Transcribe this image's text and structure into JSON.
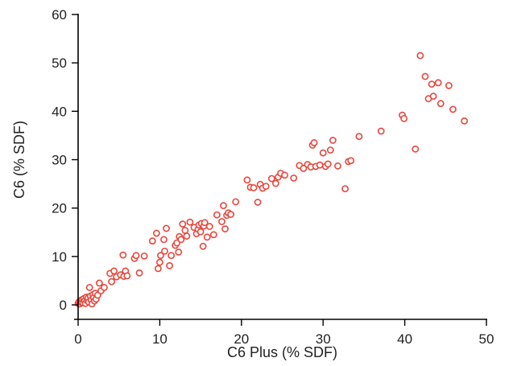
{
  "chart_data": {
    "type": "scatter",
    "title": "",
    "xlabel": "C6 Plus (% SDF)",
    "ylabel": "C6 (% SDF)",
    "xlim": [
      0,
      50
    ],
    "ylim": [
      0,
      60
    ],
    "xticks": [
      0,
      10,
      20,
      30,
      40,
      50
    ],
    "yticks": [
      0,
      10,
      20,
      30,
      40,
      50,
      60
    ],
    "grid": false,
    "legend": "none",
    "marker": "open-circle",
    "color": "#e8463c",
    "series": [
      {
        "points": [
          [
            0.0,
            0.3
          ],
          [
            0.1,
            0.6
          ],
          [
            0.2,
            0.2
          ],
          [
            0.3,
            0.9
          ],
          [
            0.4,
            0.5
          ],
          [
            0.5,
            1.1
          ],
          [
            0.6,
            0.4
          ],
          [
            0.7,
            1.3
          ],
          [
            0.8,
            0.8
          ],
          [
            0.9,
            0.3
          ],
          [
            1.0,
            1.6
          ],
          [
            1.1,
            0.9
          ],
          [
            1.2,
            1.4
          ],
          [
            1.3,
            0.6
          ],
          [
            1.4,
            3.6
          ],
          [
            1.5,
            1.8
          ],
          [
            1.6,
            1.0
          ],
          [
            1.7,
            0.2
          ],
          [
            1.8,
            2.1
          ],
          [
            1.9,
            1.5
          ],
          [
            2.0,
            0.8
          ],
          [
            2.1,
            2.4
          ],
          [
            2.2,
            1.2
          ],
          [
            2.4,
            2.0
          ],
          [
            2.6,
            4.5
          ],
          [
            2.8,
            2.9
          ],
          [
            3.2,
            3.6
          ],
          [
            3.9,
            6.5
          ],
          [
            4.1,
            4.8
          ],
          [
            4.4,
            7.0
          ],
          [
            4.7,
            5.8
          ],
          [
            5.2,
            6.2
          ],
          [
            5.5,
            10.3
          ],
          [
            5.6,
            5.9
          ],
          [
            5.8,
            7.0
          ],
          [
            6.0,
            6.0
          ],
          [
            6.9,
            9.6
          ],
          [
            7.1,
            10.2
          ],
          [
            7.5,
            6.6
          ],
          [
            8.1,
            10.1
          ],
          [
            9.1,
            13.2
          ],
          [
            9.6,
            14.8
          ],
          [
            9.8,
            7.5
          ],
          [
            10.0,
            8.8
          ],
          [
            10.1,
            10.2
          ],
          [
            10.5,
            13.5
          ],
          [
            10.6,
            11.1
          ],
          [
            10.8,
            15.8
          ],
          [
            11.2,
            8.1
          ],
          [
            11.4,
            10.2
          ],
          [
            11.9,
            12.3
          ],
          [
            12.1,
            12.8
          ],
          [
            12.3,
            10.9
          ],
          [
            12.4,
            14.1
          ],
          [
            12.6,
            13.5
          ],
          [
            12.8,
            16.7
          ],
          [
            13.1,
            15.4
          ],
          [
            13.3,
            14.2
          ],
          [
            13.7,
            17.1
          ],
          [
            14.2,
            16.0
          ],
          [
            14.5,
            14.7
          ],
          [
            14.7,
            15.6
          ],
          [
            14.8,
            16.5
          ],
          [
            15.0,
            15.1
          ],
          [
            15.1,
            16.8
          ],
          [
            15.3,
            12.1
          ],
          [
            15.4,
            16.3
          ],
          [
            15.5,
            17.0
          ],
          [
            15.8,
            14.0
          ],
          [
            16.1,
            16.2
          ],
          [
            16.6,
            14.5
          ],
          [
            17.0,
            18.6
          ],
          [
            17.6,
            17.2
          ],
          [
            17.8,
            20.5
          ],
          [
            18.0,
            15.7
          ],
          [
            18.2,
            18.5
          ],
          [
            18.4,
            19.0
          ],
          [
            18.7,
            18.7
          ],
          [
            19.3,
            21.3
          ],
          [
            20.7,
            25.8
          ],
          [
            21.1,
            24.3
          ],
          [
            21.5,
            24.2
          ],
          [
            22.0,
            21.2
          ],
          [
            22.3,
            24.9
          ],
          [
            22.6,
            24.1
          ],
          [
            23.0,
            24.5
          ],
          [
            23.7,
            26.1
          ],
          [
            24.2,
            25.1
          ],
          [
            24.5,
            26.4
          ],
          [
            24.8,
            27.2
          ],
          [
            25.3,
            26.8
          ],
          [
            26.4,
            26.2
          ],
          [
            27.1,
            28.8
          ],
          [
            27.6,
            28.2
          ],
          [
            28.1,
            29.0
          ],
          [
            28.5,
            28.5
          ],
          [
            28.7,
            33.0
          ],
          [
            28.9,
            33.5
          ],
          [
            29.1,
            28.6
          ],
          [
            29.6,
            28.9
          ],
          [
            30.0,
            31.4
          ],
          [
            30.3,
            28.6
          ],
          [
            30.6,
            29.1
          ],
          [
            30.9,
            32.0
          ],
          [
            31.2,
            34.0
          ],
          [
            31.8,
            28.7
          ],
          [
            32.7,
            24.0
          ],
          [
            33.1,
            29.6
          ],
          [
            33.4,
            29.8
          ],
          [
            34.4,
            34.8
          ],
          [
            37.1,
            35.9
          ],
          [
            39.7,
            39.2
          ],
          [
            39.9,
            38.5
          ],
          [
            41.3,
            32.2
          ],
          [
            41.9,
            51.5
          ],
          [
            42.5,
            47.2
          ],
          [
            42.9,
            42.6
          ],
          [
            43.3,
            45.6
          ],
          [
            43.5,
            43.1
          ],
          [
            44.1,
            45.9
          ],
          [
            44.4,
            41.6
          ],
          [
            45.4,
            45.3
          ],
          [
            45.9,
            40.4
          ],
          [
            47.3,
            38.0
          ]
        ]
      }
    ]
  }
}
